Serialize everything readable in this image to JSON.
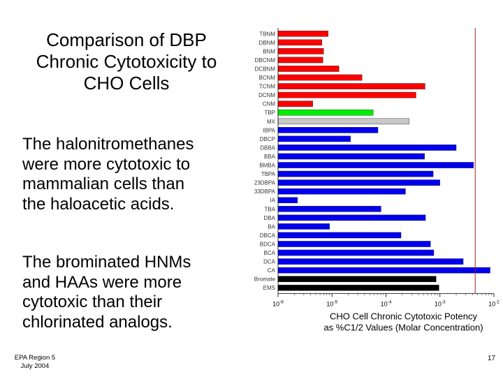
{
  "title_lines": [
    "Comparison of DBP",
    "Chronic Cytotoxicity to",
    "CHO Cells"
  ],
  "paragraph1_lines": [
    "The halonitromethanes",
    "were more cytotoxic to",
    "mammalian cells than",
    "the haloacetic acids."
  ],
  "paragraph2_lines": [
    "The brominated HNMs",
    "and HAAs were more",
    "cytotoxic than their",
    "chlorinated analogs."
  ],
  "footer": {
    "org": "EPA Region 5",
    "date": "July 2004"
  },
  "page_number": "17",
  "colors": {
    "halonitromethanes": "#ff0000",
    "tribromopyrrole": "#00ee00",
    "mx": "#c8c8c8",
    "haloacetic_acids": "#0000ee",
    "controls": "#000000",
    "reference_line": "#aa2222"
  },
  "chart_data": {
    "type": "bar",
    "orientation": "horizontal",
    "x_scale": "log",
    "xlim": [
      1e-06,
      0.01
    ],
    "x_ticks": [
      {
        "value": 1e-06,
        "base": "10",
        "exp": "-6"
      },
      {
        "value": 1e-05,
        "base": "10",
        "exp": "-5"
      },
      {
        "value": 0.0001,
        "base": "10",
        "exp": "-4"
      },
      {
        "value": 0.001,
        "base": "10",
        "exp": "-3"
      },
      {
        "value": 0.01,
        "base": "10",
        "exp": "-2"
      }
    ],
    "xlabel_lines": [
      "CHO Cell Chronic Cytotoxic Potency",
      "as %C1/2 Values (Molar Concentration)"
    ],
    "reference_line_x": 0.0045,
    "categories": [
      "TBNM",
      "DBNM",
      "BNM",
      "DBCNM",
      "DCBNM",
      "BCNM",
      "TCNM",
      "DCNM",
      "CNM",
      "TBP",
      "MX",
      "IBPA",
      "DBCP",
      "DBBA",
      "BBA",
      "BMBA",
      "TBPA",
      "23DBPA",
      "33DBPA",
      "IA",
      "TBA",
      "DBA",
      "BA",
      "DBCA",
      "BDCA",
      "BCA",
      "DCA",
      "CA",
      "Bromate",
      "EMS"
    ],
    "values": [
      8.5e-06,
      6.5e-06,
      7e-06,
      6.8e-06,
      1.35e-05,
      3.6e-05,
      0.00053,
      0.00036,
      4.4e-06,
      5.8e-05,
      0.00027,
      7.1e-05,
      2.2e-05,
      0.002,
      0.00052,
      0.0042,
      0.00075,
      0.001,
      0.00023,
      2.3e-06,
      8.1e-05,
      0.00054,
      9e-06,
      0.00019,
      0.00067,
      0.00077,
      0.0027,
      0.0085,
      0.00085,
      0.00096
    ],
    "groups": [
      "halonitromethanes",
      "halonitromethanes",
      "halonitromethanes",
      "halonitromethanes",
      "halonitromethanes",
      "halonitromethanes",
      "halonitromethanes",
      "halonitromethanes",
      "halonitromethanes",
      "tribromopyrrole",
      "mx",
      "haloacetic_acids",
      "haloacetic_acids",
      "haloacetic_acids",
      "haloacetic_acids",
      "haloacetic_acids",
      "haloacetic_acids",
      "haloacetic_acids",
      "haloacetic_acids",
      "haloacetic_acids",
      "haloacetic_acids",
      "haloacetic_acids",
      "haloacetic_acids",
      "haloacetic_acids",
      "haloacetic_acids",
      "haloacetic_acids",
      "haloacetic_acids",
      "haloacetic_acids",
      "controls",
      "controls"
    ]
  }
}
